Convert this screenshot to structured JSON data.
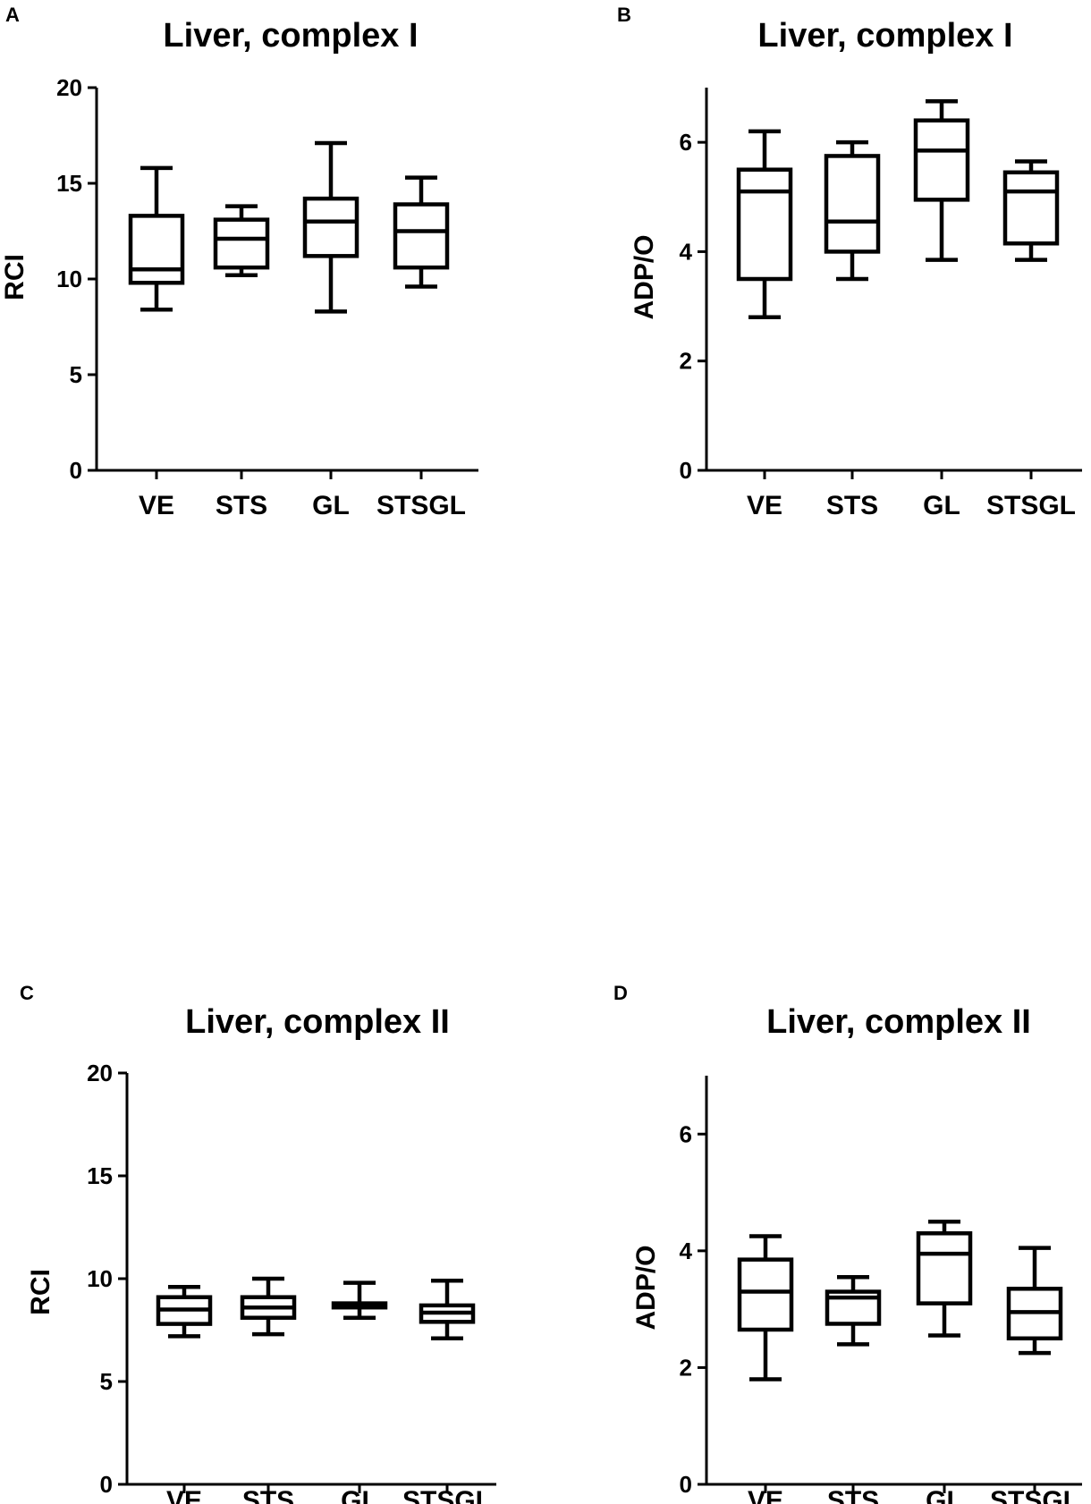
{
  "chart_data": [
    {
      "panel": "A",
      "type": "box",
      "title": "Liver, complex I",
      "ylabel": "RCI",
      "xlabel": "",
      "ylim": [
        0,
        20
      ],
      "yticks": [
        0,
        5,
        10,
        15,
        20
      ],
      "categories": [
        "VE",
        "STS",
        "GL",
        "STSGL"
      ],
      "boxes": [
        {
          "min": 8.4,
          "q1": 9.8,
          "median": 10.5,
          "q3": 13.3,
          "max": 15.8
        },
        {
          "min": 10.2,
          "q1": 10.6,
          "median": 12.1,
          "q3": 13.1,
          "max": 13.8
        },
        {
          "min": 8.3,
          "q1": 11.2,
          "median": 13.0,
          "q3": 14.2,
          "max": 17.1
        },
        {
          "min": 9.6,
          "q1": 10.6,
          "median": 12.5,
          "q3": 13.9,
          "max": 15.3
        }
      ]
    },
    {
      "panel": "B",
      "type": "box",
      "title": "Liver, complex I",
      "ylabel": "ADP/O",
      "xlabel": "",
      "ylim": [
        0,
        7
      ],
      "yticks": [
        0,
        2,
        4,
        6
      ],
      "categories": [
        "VE",
        "STS",
        "GL",
        "STSGL"
      ],
      "boxes": [
        {
          "min": 2.8,
          "q1": 3.5,
          "median": 5.1,
          "q3": 5.5,
          "max": 6.2
        },
        {
          "min": 3.5,
          "q1": 4.0,
          "median": 4.55,
          "q3": 5.75,
          "max": 6.0
        },
        {
          "min": 3.85,
          "q1": 4.95,
          "median": 5.85,
          "q3": 6.4,
          "max": 6.75
        },
        {
          "min": 3.85,
          "q1": 4.15,
          "median": 5.1,
          "q3": 5.45,
          "max": 5.65
        }
      ]
    },
    {
      "panel": "C",
      "type": "box",
      "title": "Liver, complex II",
      "ylabel": "RCI",
      "xlabel": "",
      "ylim": [
        0,
        20
      ],
      "yticks": [
        0,
        5,
        10,
        15,
        20
      ],
      "categories": [
        "VE",
        "STS",
        "GL",
        "STSGL"
      ],
      "boxes": [
        {
          "min": 7.2,
          "q1": 7.8,
          "median": 8.5,
          "q3": 9.1,
          "max": 9.6
        },
        {
          "min": 7.3,
          "q1": 8.1,
          "median": 8.6,
          "q3": 9.1,
          "max": 10.0
        },
        {
          "min": 8.1,
          "q1": 8.6,
          "median": 8.7,
          "q3": 8.8,
          "max": 9.8
        },
        {
          "min": 7.1,
          "q1": 7.9,
          "median": 8.35,
          "q3": 8.7,
          "max": 9.9
        }
      ]
    },
    {
      "panel": "D",
      "type": "box",
      "title": "Liver, complex II",
      "ylabel": "ADP/O",
      "xlabel": "",
      "ylim": [
        0,
        7
      ],
      "yticks": [
        0,
        2,
        4,
        6
      ],
      "categories": [
        "VE",
        "STS",
        "GL",
        "STSGL"
      ],
      "boxes": [
        {
          "min": 1.8,
          "q1": 2.65,
          "median": 3.3,
          "q3": 3.85,
          "max": 4.25
        },
        {
          "min": 2.4,
          "q1": 2.75,
          "median": 3.2,
          "q3": 3.3,
          "max": 3.55
        },
        {
          "min": 2.55,
          "q1": 3.1,
          "median": 3.95,
          "q3": 4.3,
          "max": 4.5
        },
        {
          "min": 2.25,
          "q1": 2.5,
          "median": 2.95,
          "q3": 3.35,
          "max": 4.05
        }
      ]
    }
  ]
}
